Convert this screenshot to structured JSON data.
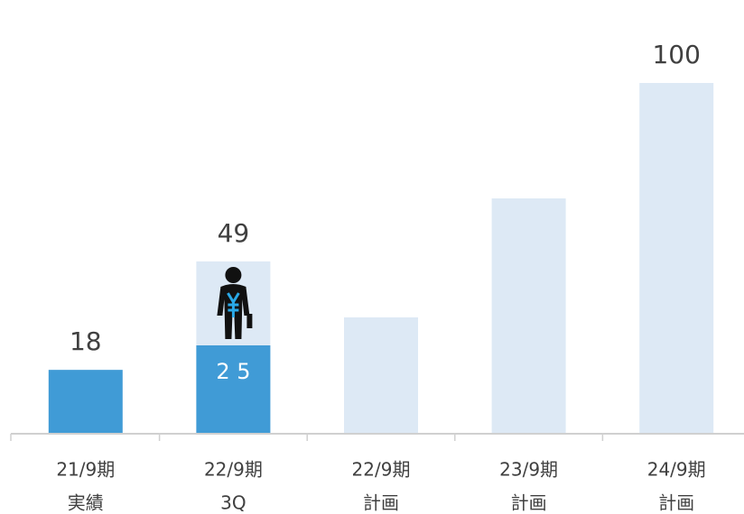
{
  "chart_data": {
    "type": "bar",
    "categories": [
      "21/9期",
      "22/9期",
      "22/9期",
      "23/9期",
      "24/9期"
    ],
    "category_sublabels": [
      "実績",
      "3Q",
      "計画",
      "計画",
      "計画"
    ],
    "series": [
      {
        "name": "計画",
        "color": "#dde9f5",
        "values": [
          null,
          49,
          33,
          67,
          100
        ],
        "value_labels": [
          null,
          "49",
          null,
          null,
          "100"
        ]
      },
      {
        "name": "実績",
        "color": "#409bd6",
        "values": [
          18,
          25,
          null,
          null,
          null
        ],
        "value_labels": [
          "18",
          "2 5",
          null,
          null,
          null
        ]
      }
    ],
    "ylim": [
      0,
      100
    ]
  }
}
